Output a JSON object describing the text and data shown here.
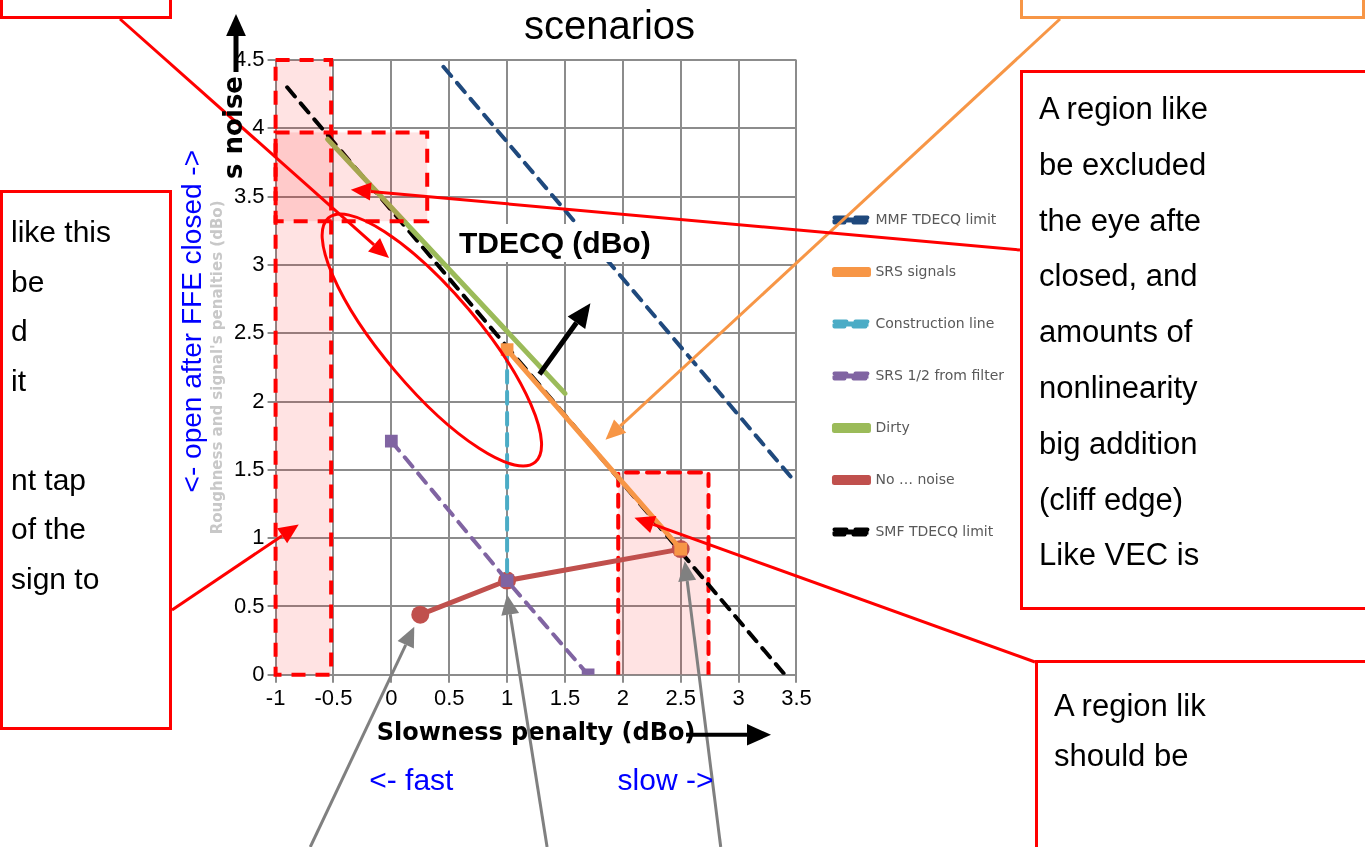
{
  "chart_data": {
    "type": "line",
    "title": "scenarios",
    "xlabel": "Slowness penalty (dBo)",
    "ylabel": "Roughness and signal's penalties (dBo)",
    "xlim": [
      -1,
      3.5
    ],
    "xticks": [
      -1,
      -0.5,
      0,
      0.5,
      1,
      1.5,
      2,
      2.5,
      3,
      3.5
    ],
    "ylim": [
      0,
      4.5
    ],
    "yticks": [
      0,
      0.5,
      1,
      1.5,
      2,
      2.5,
      3,
      3.5,
      4,
      4.5
    ],
    "grid": true,
    "legend": "right",
    "series": [
      {
        "name": "SMF TDECQ limit",
        "color": "#000000",
        "x": [
          -0.9,
          3.4
        ],
        "values": [
          4.3,
          0
        ],
        "line_style": "dashed",
        "marker": "none"
      },
      {
        "name": "No … noise",
        "color": "#c0504d",
        "x": [
          0.25,
          1,
          2.5
        ],
        "values": [
          0.44,
          0.69,
          0.92
        ],
        "line_style": "solid",
        "marker": "circle"
      },
      {
        "name": "Dirty",
        "color": "#9bbb59",
        "x": [
          -0.55,
          1.5
        ],
        "values": [
          3.92,
          2.06
        ],
        "line_style": "solid",
        "marker": "none"
      },
      {
        "name": "SRS 1/2 from filter",
        "color": "#8064a2",
        "x": [
          0,
          1,
          1.7
        ],
        "values": [
          1.71,
          0.69,
          0
        ],
        "line_style": "dashed",
        "marker": "square"
      },
      {
        "name": "Construction line",
        "color": "#4bacc6",
        "x": [
          1,
          1
        ],
        "values": [
          2.38,
          0.69
        ],
        "line_style": "dashed",
        "marker": "none"
      },
      {
        "name": "SRS signals",
        "color": "#f79646",
        "x": [
          1,
          2.5
        ],
        "values": [
          2.38,
          0.92
        ],
        "line_style": "solid",
        "marker": "square"
      },
      {
        "name": "MMF TDECQ limit",
        "color": "#1f497d",
        "x": [
          0.45,
          3.45
        ],
        "values": [
          4.45,
          1.45
        ],
        "line_style": "dashed",
        "marker": "none"
      },
      {
        "type": "area",
        "color": "#ff0000",
        "x": [
          1.96,
          1.96,
          2.74,
          2.74
        ],
        "values": [
          0,
          1.48,
          1.48,
          0
        ],
        "line_style": "dashed",
        "marker": "none"
      }
    ],
    "bands": [
      {
        "axis": "x",
        "from": -1,
        "to": -0.52,
        "color": "#ff0000"
      }
    ],
    "annotations": [
      "TDECQ (dBo)",
      "<- fast",
      "slow ->",
      "<- open after FFE closed ->",
      "s noise",
      "like this\nbe\nd\nit\n\nnt tap\nof the\nsign to",
      "A region like\nbe excluded\nthe eye afte\nclosed, and\namounts of\nnonlinearity\nbig addition\n(cliff edge)\nLike VEC is",
      "A region lik\nshould be"
    ]
  }
}
